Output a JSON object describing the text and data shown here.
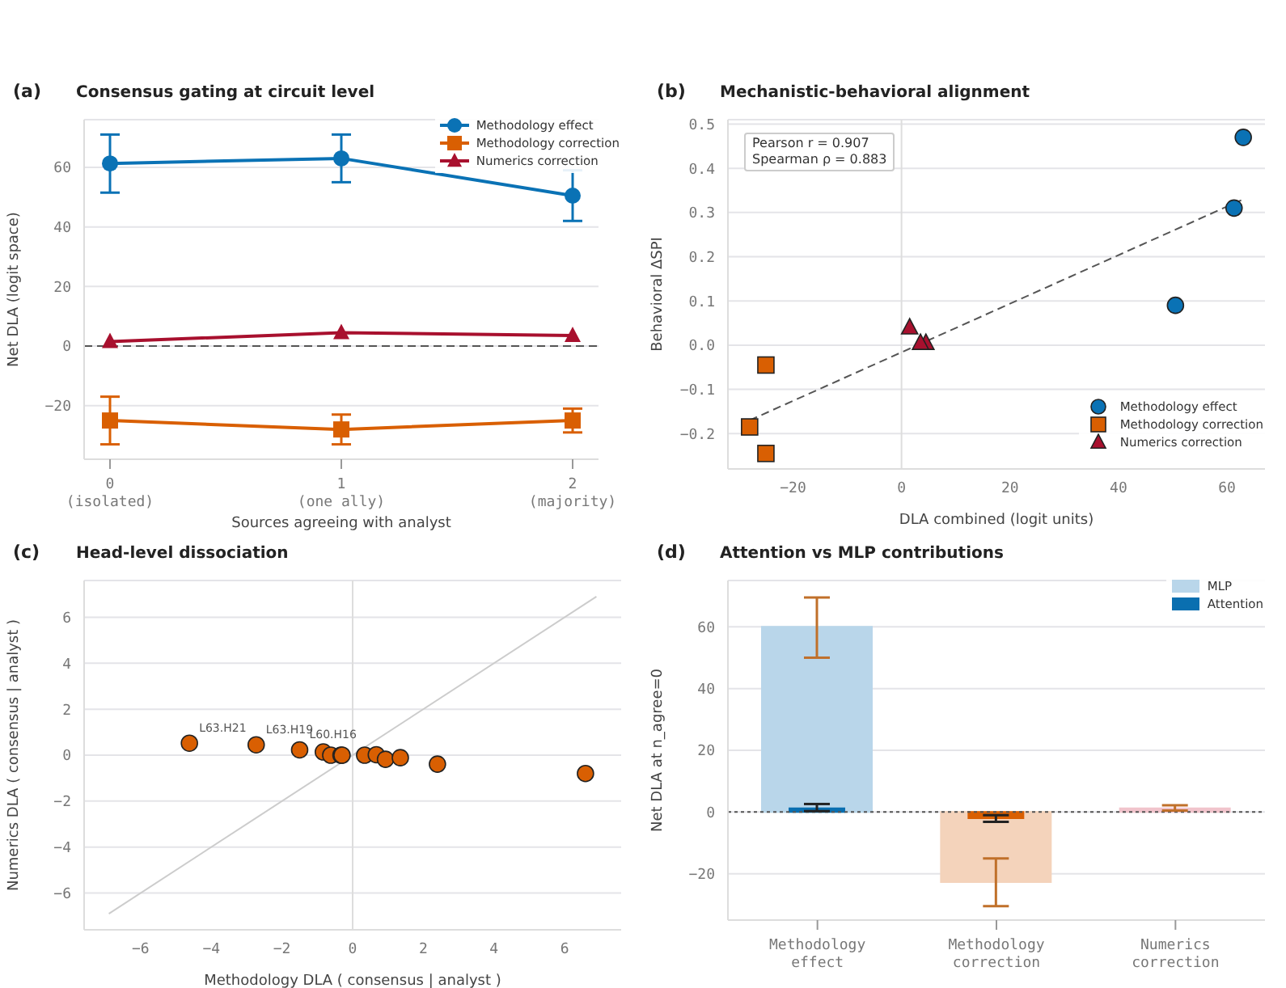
{
  "chart_data": [
    {
      "type": "line",
      "title": "Consensus gating at circuit level",
      "xlabel": "Sources agreeing with analyst",
      "ylabel": "Net DLA (logit space)",
      "annotations": [
        "(a)"
      ],
      "categories": [
        "0\n(isolated)",
        "1\n(one ally)",
        "2\n(majority)"
      ],
      "series": [
        {
          "name": "Methodology effect",
          "color": "#0a72b5",
          "marker": "circle",
          "values": [
            61.3,
            63,
            50.5
          ],
          "errors": [
            [
              51.5,
              71
            ],
            [
              55,
              71
            ],
            [
              42,
              59
            ]
          ]
        },
        {
          "name": "Methodology correction",
          "color": "#d95f02",
          "marker": "square",
          "values": [
            -25,
            -28,
            -25
          ],
          "errors": [
            [
              -33,
              -17
            ],
            [
              -33,
              -23
            ],
            [
              -29,
              -21
            ]
          ]
        },
        {
          "name": "Numerics correction",
          "color": "#a8102e",
          "marker": "triangle",
          "values": [
            1.5,
            4.5,
            3.5
          ]
        }
      ],
      "ylim": [
        -38,
        76
      ],
      "yticks": [
        {
          "value": -20,
          "label": "−20"
        },
        0,
        20,
        40,
        60
      ],
      "grid": "y",
      "legend": "top right",
      "ref_lines": [
        {
          "axis": "y",
          "value": 0,
          "color": "#555555",
          "line_style": "dashed"
        }
      ]
    },
    {
      "type": "scatter",
      "title": "Mechanistic-behavioral alignment",
      "xlabel": "DLA combined (logit units)",
      "ylabel": "Behavioral ΔSPI",
      "annotations": [
        "(b)",
        "Pearson r = 0.907",
        "Spearman ρ = 0.883"
      ],
      "series": [
        {
          "name": "Methodology effect",
          "color": "#0a72b5",
          "marker": "circle",
          "x": [
            61.3,
            63,
            50.5
          ],
          "values": [
            0.31,
            0.47,
            0.09
          ]
        },
        {
          "name": "Methodology correction",
          "color": "#d95f02",
          "marker": "square",
          "x": [
            -25,
            -28,
            -25
          ],
          "values": [
            -0.045,
            -0.185,
            -0.245
          ]
        },
        {
          "name": "Numerics correction",
          "color": "#a8102e",
          "marker": "triangle",
          "x": [
            1.5,
            4.5,
            3.5
          ],
          "values": [
            0.04,
            0.005,
            0.005
          ]
        },
        {
          "type": "line",
          "color": "#555555",
          "line_style": "dashed",
          "marker": "none",
          "x": [
            -28,
            63
          ],
          "values": [
            -0.17,
            0.33
          ]
        }
      ],
      "xlim": [
        -32,
        67
      ],
      "xticks": [
        {
          "value": -20,
          "label": "−20"
        },
        0,
        20,
        40,
        60
      ],
      "ylim": [
        -0.28,
        0.51
      ],
      "yticks": [
        {
          "value": -0.2,
          "label": "−0.2"
        },
        {
          "value": -0.1,
          "label": "−0.1"
        },
        {
          "value": 0,
          "label": "0.0"
        },
        0.1,
        0.2,
        0.3,
        0.4,
        0.5
      ],
      "grid": "y",
      "legend": "bottom right",
      "ref_lines": [
        {
          "axis": "x",
          "value": 0,
          "color": "#dddddd",
          "line_style": "solid"
        }
      ]
    },
    {
      "type": "scatter",
      "title": "Head-level dissociation",
      "xlabel": "Methodology DLA ( consensus | analyst )",
      "ylabel": "Numerics DLA ( consensus | analyst )",
      "annotations": [
        "(c)",
        {
          "text": "L63.H21",
          "x": -4.62,
          "y": 0.52
        },
        {
          "text": "L63.H19",
          "x": -2.73,
          "y": 0.45
        },
        {
          "text": "L60.H16",
          "x": -1.5,
          "y": 0.23
        }
      ],
      "series": [
        {
          "color": "#d95f02",
          "marker": "circle",
          "x": [
            -4.62,
            -2.73,
            -1.5,
            -0.83,
            -0.62,
            -0.33,
            -0.3,
            0.34,
            0.67,
            0.93,
            1.35,
            2.4,
            6.59
          ],
          "values": [
            0.52,
            0.45,
            0.23,
            0.14,
            0,
            0,
            0,
            0,
            0.02,
            -0.18,
            -0.11,
            -0.39,
            -0.8
          ]
        },
        {
          "type": "line",
          "color": "#cccccc",
          "line_style": "solid",
          "marker": "none",
          "x": [
            -6.9,
            6.9
          ],
          "values": [
            -6.9,
            6.9
          ]
        }
      ],
      "xlim": [
        -7.6,
        7.6
      ],
      "xticks": [
        {
          "value": -6,
          "label": "−6"
        },
        {
          "value": -4,
          "label": "−4"
        },
        {
          "value": -2,
          "label": "−2"
        },
        0,
        2,
        4,
        6
      ],
      "ylim": [
        -7.6,
        7.6
      ],
      "yticks": [
        {
          "value": -6,
          "label": "−6"
        },
        {
          "value": -4,
          "label": "−4"
        },
        {
          "value": -2,
          "label": "−2"
        },
        0,
        2,
        4,
        6
      ],
      "grid": "y",
      "ref_lines": [
        {
          "axis": "x",
          "value": 0,
          "color": "#dddddd",
          "line_style": "solid"
        }
      ]
    },
    {
      "type": "bar",
      "title": "Attention vs MLP contributions",
      "ylabel": "Net DLA at n_agree=0",
      "annotations": [
        "(d)"
      ],
      "categories": [
        "Methodology\neffect",
        "Methodology\ncorrection",
        "Numerics\ncorrection"
      ],
      "series": [
        {
          "name": "MLP",
          "color": "#b9d6ea",
          "colors": [
            "#b9d6ea",
            "#f4d3bb",
            "#f1c4cc"
          ],
          "values": [
            60,
            -22.7,
            1.2
          ],
          "errors": [
            [
              50,
              69.5
            ],
            [
              -30.5,
              -15
            ],
            [
              0.5,
              2.2
            ]
          ]
        },
        {
          "name": "Attention",
          "color": "#0a6fb0",
          "colors": [
            "#0a6fb0",
            "#d95f02",
            "#b5102c"
          ],
          "values": [
            1.2,
            -2,
            null
          ],
          "errors": [
            [
              0.3,
              2.6
            ],
            [
              -3.2,
              -1
            ],
            null
          ]
        }
      ],
      "ylim": [
        -35,
        75
      ],
      "yticks": [
        {
          "value": -20,
          "label": "−20"
        },
        0,
        20,
        40,
        60
      ],
      "grid": "y",
      "legend": "top right",
      "ref_lines": [
        {
          "axis": "y",
          "value": 0,
          "color": "#555555",
          "line_style": "dotted"
        }
      ]
    }
  ]
}
